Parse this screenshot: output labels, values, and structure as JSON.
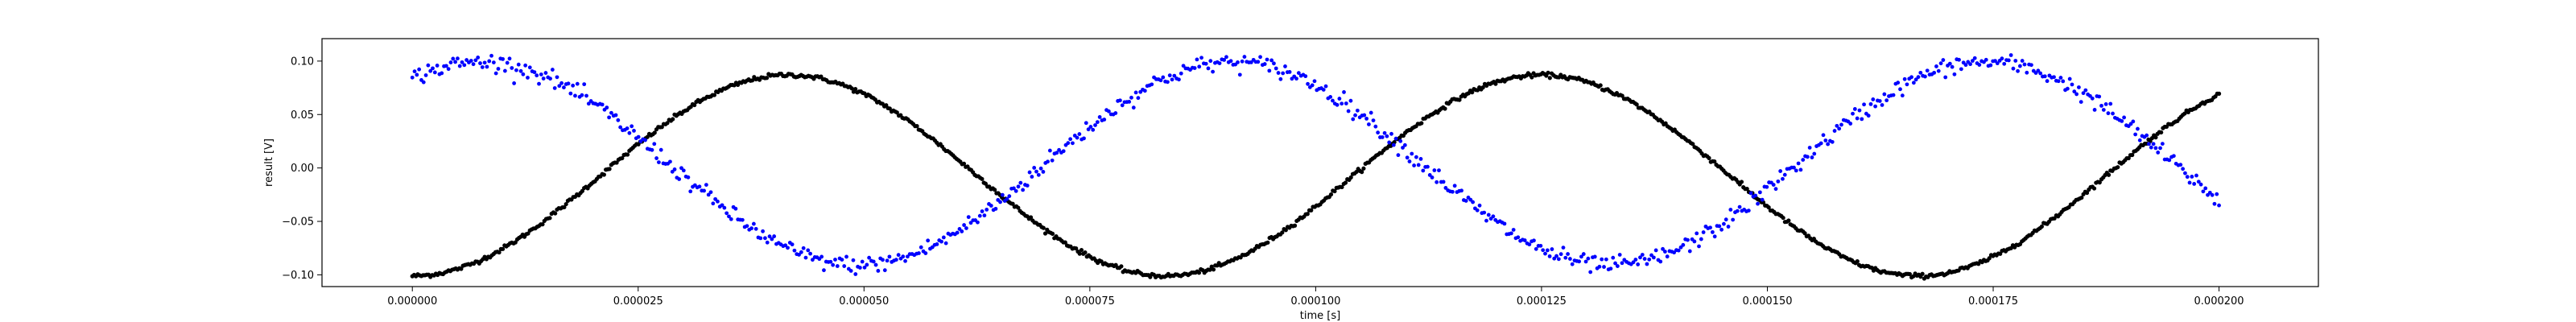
{
  "chart_data": {
    "type": "scatter",
    "title": "",
    "xlabel": "time [s]",
    "ylabel": "result [V]",
    "xlim": [
      -1e-05,
      0.000211
    ],
    "ylim": [
      -0.111,
      0.121
    ],
    "xticks": [
      0.0,
      2.5e-05,
      5e-05,
      7.5e-05,
      0.0001,
      0.000125,
      0.00015,
      0.000175,
      0.0002
    ],
    "xtick_labels": [
      "0.000000",
      "0.000025",
      "0.000050",
      "0.000075",
      "0.000100",
      "0.000125",
      "0.000150",
      "0.000175",
      "0.000200"
    ],
    "yticks": [
      -0.1,
      -0.05,
      0.0,
      0.05,
      0.1
    ],
    "ytick_labels": [
      "−0.10",
      "−0.05",
      "0.00",
      "0.05",
      "0.10"
    ],
    "grid": false,
    "legend": "none",
    "series": [
      {
        "color": "#000000",
        "marker": "dot",
        "model": {
          "amplitude": 0.094,
          "offset": -0.007,
          "frequency_hz": 12000,
          "phase_rad": -1.5708,
          "noise_sd": 0.001
        },
        "x_range": [
          0.0,
          0.0002
        ],
        "n_points": 1000
      },
      {
        "color": "#0000ff",
        "marker": "dot",
        "model": {
          "amplitude": 0.095,
          "offset": 0.004,
          "frequency_hz": 12000,
          "phase_rad": 1.0,
          "noise_sd": 0.004
        },
        "x_range": [
          0.0,
          0.0002
        ],
        "n_points": 800
      }
    ]
  }
}
